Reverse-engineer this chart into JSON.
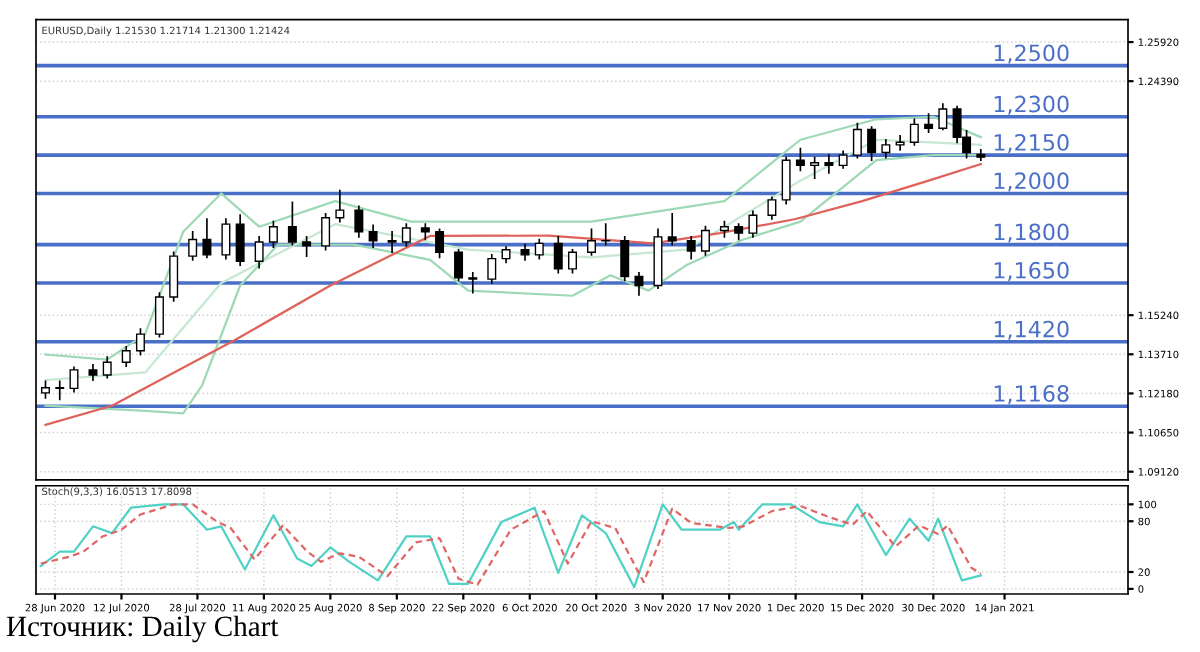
{
  "chart_data": [
    {
      "type": "candlestick",
      "title": "EURUSD,Daily 1.21530 1.21714 1.21300 1.21424",
      "grid": true,
      "tick_labels": "y",
      "xlim": [
        "2020-06-24",
        "2021-02-09"
      ],
      "ylim": [
        1.088,
        1.268
      ],
      "yticks": [
        {
          "value": 1.2592,
          "label": "1.25920"
        },
        {
          "value": 1.2439,
          "label": "1.24390"
        },
        {
          "value": 1.1524,
          "label": "1.15240"
        },
        {
          "value": 1.1371,
          "label": "1.13710"
        },
        {
          "value": 1.1218,
          "label": "1.12180"
        },
        {
          "value": 1.1065,
          "label": "1.10650"
        },
        {
          "value": 1.0912,
          "label": "1.09120"
        }
      ],
      "ref_lines": [
        {
          "axis": "y",
          "value": 1.25,
          "label": "1,2500",
          "color": "#4a6fc7"
        },
        {
          "axis": "y",
          "value": 1.23,
          "label": "1,2300",
          "color": "#4a6fc7"
        },
        {
          "axis": "y",
          "value": 1.215,
          "label": "1,2150",
          "color": "#4a6fc7"
        },
        {
          "axis": "y",
          "value": 1.2,
          "label": "1,2000",
          "color": "#4a6fc7"
        },
        {
          "axis": "y",
          "value": 1.18,
          "label": "1,1800",
          "color": "#4a6fc7"
        },
        {
          "axis": "y",
          "value": 1.165,
          "label": "1,1650",
          "color": "#4a6fc7"
        },
        {
          "axis": "y",
          "value": 1.142,
          "label": "1,1420",
          "color": "#4a6fc7"
        },
        {
          "axis": "y",
          "value": 1.1168,
          "label": "1,1168",
          "color": "#4a6fc7"
        }
      ],
      "series": [
        {
          "color": "#000000",
          "x": [
            "2020-06-26",
            "2020-06-29",
            "2020-07-02",
            "2020-07-06",
            "2020-07-09",
            "2020-07-13",
            "2020-07-16",
            "2020-07-20",
            "2020-07-23",
            "2020-07-27",
            "2020-07-30",
            "2020-08-03",
            "2020-08-06",
            "2020-08-10",
            "2020-08-13",
            "2020-08-17",
            "2020-08-20",
            "2020-08-24",
            "2020-08-27",
            "2020-08-31",
            "2020-09-03",
            "2020-09-07",
            "2020-09-10",
            "2020-09-14",
            "2020-09-17",
            "2020-09-21",
            "2020-09-24",
            "2020-09-28",
            "2020-10-01",
            "2020-10-05",
            "2020-10-08",
            "2020-10-12",
            "2020-10-15",
            "2020-10-19",
            "2020-10-22",
            "2020-10-26",
            "2020-10-29",
            "2020-11-02",
            "2020-11-05",
            "2020-11-09",
            "2020-11-12",
            "2020-11-16",
            "2020-11-19",
            "2020-11-22",
            "2020-11-26",
            "2020-11-29",
            "2020-12-02",
            "2020-12-05",
            "2020-12-08",
            "2020-12-11",
            "2020-12-14",
            "2020-12-17",
            "2020-12-20",
            "2020-12-23",
            "2020-12-26",
            "2020-12-29",
            "2021-01-01",
            "2021-01-04",
            "2021-01-06",
            "2021-01-09"
          ],
          "ohlc": [
            [
              1.122,
              1.1265,
              1.12,
              1.124
            ],
            [
              1.124,
              1.1265,
              1.1195,
              1.1238
            ],
            [
              1.1238,
              1.132,
              1.1225,
              1.131
            ],
            [
              1.131,
              1.133,
              1.127,
              1.129
            ],
            [
              1.129,
              1.136,
              1.128,
              1.134
            ],
            [
              1.134,
              1.14,
              1.1325,
              1.1385
            ],
            [
              1.1385,
              1.147,
              1.137,
              1.145
            ],
            [
              1.145,
              1.161,
              1.144,
              1.1595
            ],
            [
              1.1595,
              1.177,
              1.158,
              1.1755
            ],
            [
              1.1755,
              1.185,
              1.174,
              1.182
            ],
            [
              1.182,
              1.19,
              1.175,
              1.176
            ],
            [
              1.176,
              1.19,
              1.1745,
              1.188
            ],
            [
              1.188,
              1.1915,
              1.172,
              1.1735
            ],
            [
              1.1735,
              1.183,
              1.171,
              1.181
            ],
            [
              1.181,
              1.189,
              1.179,
              1.187
            ],
            [
              1.187,
              1.1965,
              1.18,
              1.181
            ],
            [
              1.181,
              1.183,
              1.1755,
              1.1795
            ],
            [
              1.1795,
              1.192,
              1.178,
              1.1905
            ],
            [
              1.1905,
              1.2011,
              1.189,
              1.1935
            ],
            [
              1.1935,
              1.195,
              1.183,
              1.185
            ],
            [
              1.185,
              1.1875,
              1.179,
              1.1815
            ],
            [
              1.1815,
              1.185,
              1.177,
              1.181
            ],
            [
              1.181,
              1.188,
              1.1795,
              1.1865
            ],
            [
              1.1865,
              1.188,
              1.182,
              1.185
            ],
            [
              1.185,
              1.186,
              1.175,
              1.177
            ],
            [
              1.177,
              1.178,
              1.166,
              1.167
            ],
            [
              1.167,
              1.169,
              1.1612,
              1.1665
            ],
            [
              1.1665,
              1.176,
              1.165,
              1.1745
            ],
            [
              1.1745,
              1.179,
              1.173,
              1.178
            ],
            [
              1.178,
              1.18,
              1.174,
              1.176
            ],
            [
              1.176,
              1.182,
              1.1745,
              1.1805
            ],
            [
              1.1805,
              1.183,
              1.169,
              1.1705
            ],
            [
              1.1705,
              1.178,
              1.169,
              1.177
            ],
            [
              1.177,
              1.186,
              1.176,
              1.1815
            ],
            [
              1.1815,
              1.188,
              1.18,
              1.1815
            ],
            [
              1.1815,
              1.183,
              1.166,
              1.1675
            ],
            [
              1.1675,
              1.169,
              1.1603,
              1.164
            ],
            [
              1.164,
              1.186,
              1.163,
              1.183
            ],
            [
              1.183,
              1.192,
              1.18,
              1.1815
            ],
            [
              1.1815,
              1.183,
              1.1745,
              1.1775
            ],
            [
              1.1775,
              1.187,
              1.176,
              1.1855
            ],
            [
              1.1855,
              1.189,
              1.183,
              1.187
            ],
            [
              1.187,
              1.188,
              1.182,
              1.1845
            ],
            [
              1.1845,
              1.193,
              1.183,
              1.1915
            ],
            [
              1.1915,
              1.1985,
              1.19,
              1.1975
            ],
            [
              1.1975,
              1.214,
              1.196,
              1.213
            ],
            [
              1.213,
              1.2175,
              1.209,
              1.211
            ],
            [
              1.211,
              1.214,
              1.206,
              1.212
            ],
            [
              1.212,
              1.215,
              1.208,
              1.211
            ],
            [
              1.211,
              1.2165,
              1.21,
              1.215
            ],
            [
              1.215,
              1.2273,
              1.214,
              1.225
            ],
            [
              1.225,
              1.226,
              1.213,
              1.216
            ],
            [
              1.216,
              1.221,
              1.214,
              1.219
            ],
            [
              1.219,
              1.2225,
              1.217,
              1.22
            ],
            [
              1.22,
              1.229,
              1.219,
              1.227
            ],
            [
              1.227,
              1.231,
              1.224,
              1.2255
            ],
            [
              1.2255,
              1.2349,
              1.225,
              1.233
            ],
            [
              1.233,
              1.234,
              1.22,
              1.222
            ],
            [
              1.222,
              1.2245,
              1.214,
              1.216
            ],
            [
              1.2153,
              1.2171,
              1.213,
              1.2142
            ]
          ]
        },
        {
          "type": "line",
          "color": "#9dd9b4",
          "x": [
            "2020-06-26",
            "2020-07-09",
            "2020-07-17",
            "2020-07-25",
            "2020-08-02",
            "2020-08-10",
            "2020-08-26",
            "2020-09-11",
            "2020-10-03",
            "2020-10-19",
            "2020-11-16",
            "2020-12-02",
            "2020-12-18",
            "2020-12-30",
            "2021-01-09"
          ],
          "values": [
            1.137,
            1.135,
            1.145,
            1.185,
            1.2,
            1.187,
            1.197,
            1.189,
            1.189,
            1.189,
            1.197,
            1.221,
            1.229,
            1.23,
            1.222
          ]
        },
        {
          "type": "line",
          "color": "#9dd9b4",
          "x": [
            "2020-06-26",
            "2020-07-17",
            "2020-07-25",
            "2020-07-29",
            "2020-08-06",
            "2020-08-14",
            "2020-08-30",
            "2020-09-15",
            "2020-09-23",
            "2020-10-15",
            "2020-10-23",
            "2020-10-31",
            "2020-11-08",
            "2020-11-20",
            "2020-12-02",
            "2020-12-18",
            "2020-12-30",
            "2021-01-09"
          ],
          "values": [
            1.117,
            1.115,
            1.114,
            1.125,
            1.164,
            1.18,
            1.18,
            1.174,
            1.162,
            1.16,
            1.168,
            1.162,
            1.172,
            1.182,
            1.189,
            1.213,
            1.215,
            1.215
          ]
        },
        {
          "type": "line",
          "color": "#c6e8d2",
          "x": [
            "2020-06-26",
            "2020-07-17",
            "2020-08-02",
            "2020-08-26",
            "2020-09-23",
            "2020-10-19",
            "2020-11-08",
            "2020-12-02",
            "2020-12-18",
            "2021-01-09"
          ],
          "values": [
            1.127,
            1.13,
            1.165,
            1.188,
            1.178,
            1.175,
            1.178,
            1.205,
            1.221,
            1.219
          ]
        },
        {
          "type": "line",
          "color": "#e0605a",
          "x": [
            "2020-06-26",
            "2020-07-10",
            "2020-08-05",
            "2020-08-25",
            "2020-09-15",
            "2020-10-10",
            "2020-11-01",
            "2020-11-15",
            "2020-12-01",
            "2020-12-15",
            "2020-12-29",
            "2021-01-09"
          ],
          "values": [
            1.1095,
            1.117,
            1.1428,
            1.164,
            1.1834,
            1.1835,
            1.1805,
            1.1845,
            1.19,
            1.197,
            1.205,
            1.2115
          ]
        }
      ]
    },
    {
      "type": "line",
      "title": "Stoch(9,3,3) 16.0513 17.8098",
      "grid": true,
      "xlim": [
        "2020-06-24",
        "2021-02-09"
      ],
      "xticks": [
        {
          "value": "2020-06-28",
          "label": "28 Jun 2020"
        },
        {
          "value": "2020-07-12",
          "label": "12 Jul 2020"
        },
        {
          "value": "2020-07-28",
          "label": "28 Jul 2020"
        },
        {
          "value": "2020-08-11",
          "label": "11 Aug 2020"
        },
        {
          "value": "2020-08-25",
          "label": "25 Aug 2020"
        },
        {
          "value": "2020-09-08",
          "label": "8 Sep 2020"
        },
        {
          "value": "2020-09-22",
          "label": "22 Sep 2020"
        },
        {
          "value": "2020-10-06",
          "label": "6 Oct 2020"
        },
        {
          "value": "2020-10-20",
          "label": "20 Oct 2020"
        },
        {
          "value": "2020-11-03",
          "label": "3 Nov 2020"
        },
        {
          "value": "2020-11-17",
          "label": "17 Nov 2020"
        },
        {
          "value": "2020-12-01",
          "label": "1 Dec 2020"
        },
        {
          "value": "2020-12-15",
          "label": "15 Dec 2020"
        },
        {
          "value": "2020-12-30",
          "label": "30 Dec 2020"
        },
        {
          "value": "2021-01-14",
          "label": "14 Jan 2021"
        }
      ],
      "ylim": [
        -6,
        122
      ],
      "yticks": [
        0,
        20,
        80,
        100
      ],
      "annotations": [
        "Источник: Daily Chart"
      ],
      "series": [
        {
          "color": "#4fd1c5",
          "line_style": "solid",
          "x": [
            "2020-06-25",
            "2020-06-29",
            "2020-07-02",
            "2020-07-06",
            "2020-07-10",
            "2020-07-14",
            "2020-07-21",
            "2020-07-25",
            "2020-07-30",
            "2020-08-02",
            "2020-08-07",
            "2020-08-13",
            "2020-08-18",
            "2020-08-21",
            "2020-08-25",
            "2020-08-29",
            "2020-09-04",
            "2020-09-10",
            "2020-09-15",
            "2020-09-19",
            "2020-09-23",
            "2020-09-30",
            "2020-10-07",
            "2020-10-12",
            "2020-10-17",
            "2020-10-22",
            "2020-10-28",
            "2020-11-03",
            "2020-11-07",
            "2020-11-15",
            "2020-11-18",
            "2020-11-19",
            "2020-11-24",
            "2020-11-30",
            "2020-12-06",
            "2020-12-11",
            "2020-12-14",
            "2020-12-20",
            "2020-12-25",
            "2020-12-29",
            "2020-12-31",
            "2021-01-05",
            "2021-01-09"
          ],
          "values": [
            27,
            44,
            44,
            74,
            66,
            96,
            100,
            100,
            70,
            74,
            23,
            87,
            36,
            27,
            49,
            32,
            10,
            62,
            62,
            6,
            6,
            79,
            96,
            19,
            87,
            66,
            2,
            100,
            70,
            70,
            79,
            70,
            100,
            100,
            79,
            74,
            100,
            40,
            83,
            57,
            83,
            10,
            16
          ]
        },
        {
          "color": "#e06666",
          "line_style": "dashed",
          "x": [
            "2020-06-25",
            "2020-07-01",
            "2020-07-04",
            "2020-07-08",
            "2020-07-12",
            "2020-07-16",
            "2020-07-23",
            "2020-07-27",
            "2020-08-01",
            "2020-08-04",
            "2020-08-09",
            "2020-08-15",
            "2020-08-20",
            "2020-08-23",
            "2020-08-27",
            "2020-08-31",
            "2020-09-06",
            "2020-09-12",
            "2020-09-17",
            "2020-09-21",
            "2020-09-25",
            "2020-10-02",
            "2020-10-09",
            "2020-10-14",
            "2020-10-19",
            "2020-10-24",
            "2020-10-30",
            "2020-11-05",
            "2020-11-09",
            "2020-11-17",
            "2020-11-20",
            "2020-11-26",
            "2020-12-02",
            "2020-12-08",
            "2020-12-13",
            "2020-12-16",
            "2020-12-22",
            "2020-12-27",
            "2020-12-31",
            "2021-01-02",
            "2021-01-07",
            "2021-01-09"
          ],
          "values": [
            30,
            38,
            44,
            62,
            70,
            88,
            100,
            100,
            80,
            72,
            35,
            75,
            45,
            32,
            42,
            38,
            15,
            55,
            60,
            12,
            5,
            70,
            92,
            30,
            80,
            72,
            8,
            95,
            78,
            72,
            74,
            92,
            98,
            85,
            76,
            92,
            50,
            75,
            65,
            75,
            25,
            18
          ]
        }
      ]
    }
  ]
}
